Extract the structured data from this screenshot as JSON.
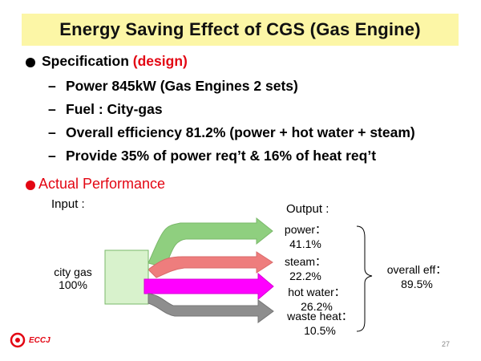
{
  "title": "Energy Saving Effect of CGS (Gas Engine)",
  "spec": {
    "label": "Specification ",
    "label_red": "(design)",
    "items": [
      "Power 845kW  (Gas Engines 2 sets)",
      "Fuel : City-gas",
      "Overall efficiency 81.2% (power + hot water + steam)",
      "Provide 35% of power req’t  & 16% of heat req’t"
    ]
  },
  "actual": {
    "heading": "Actual Performance",
    "input_label": "Input :",
    "output_label": "Output :",
    "source": {
      "line1": "city gas",
      "line2": "100%"
    },
    "outputs": [
      {
        "name": "power：",
        "value": "41.1%",
        "color": "#8fcf7f"
      },
      {
        "name": "steam：",
        "value": "22.2%",
        "color": "#ee7d7d"
      },
      {
        "name": "hot water：",
        "value": "26.2%",
        "color": "#ff00ff"
      },
      {
        "name": "waste heat：",
        "value": "10.5%",
        "color": "#8e8e8e"
      }
    ],
    "overall": {
      "line1": "overall eff：",
      "line2": "89.5%"
    }
  },
  "footer": {
    "logo": "ECCJ",
    "page": "27"
  }
}
